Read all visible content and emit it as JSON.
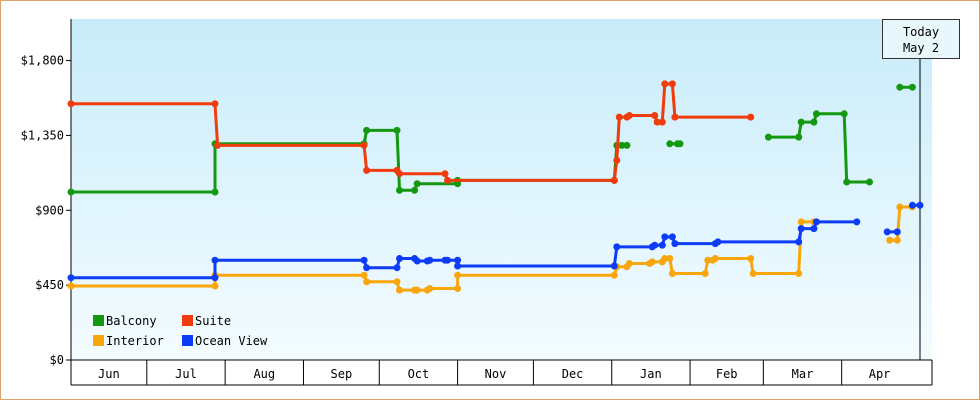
{
  "chart_data": {
    "type": "line",
    "title": "",
    "xlabel": "",
    "ylabel": "",
    "ylim": [
      0,
      2050
    ],
    "y_ticks": [
      0,
      450,
      900,
      1350,
      1800
    ],
    "y_tick_labels": [
      "$0",
      "$450",
      "$900",
      "$1,350",
      "$1,800"
    ],
    "x_range": [
      "2023-06-01",
      "2024-05-02"
    ],
    "months": [
      {
        "label": "Jun",
        "start": "2023-06-01",
        "end": "2023-07-01"
      },
      {
        "label": "Jul",
        "start": "2023-07-01",
        "end": "2023-08-01"
      },
      {
        "label": "Aug",
        "start": "2023-08-01",
        "end": "2023-09-01"
      },
      {
        "label": "Sep",
        "start": "2023-09-01",
        "end": "2023-10-01"
      },
      {
        "label": "Oct",
        "start": "2023-10-01",
        "end": "2023-11-01"
      },
      {
        "label": "Nov",
        "start": "2023-11-01",
        "end": "2023-12-01"
      },
      {
        "label": "Dec",
        "start": "2023-12-01",
        "end": "2024-01-01"
      },
      {
        "label": "Jan",
        "start": "2024-01-01",
        "end": "2024-02-01"
      },
      {
        "label": "Feb",
        "start": "2024-02-01",
        "end": "2024-03-01"
      },
      {
        "label": "Mar",
        "start": "2024-03-01",
        "end": "2024-04-01"
      },
      {
        "label": "Apr",
        "start": "2024-04-01",
        "end": "2024-05-01"
      }
    ],
    "grid": false,
    "legend_position": "bottom-left",
    "today_marker": {
      "date": "2024-05-02",
      "line1": "Today",
      "line2": "May 2"
    },
    "series": [
      {
        "name": "Balcony",
        "color": "#13980f",
        "segments": [
          [
            [
              "2023-06-01",
              1010
            ],
            [
              "2023-07-28",
              1010
            ],
            [
              "2023-07-28",
              1300
            ],
            [
              "2023-09-25",
              1300
            ],
            [
              "2023-09-26",
              1380
            ],
            [
              "2023-10-08",
              1380
            ],
            [
              "2023-10-09",
              1020
            ],
            [
              "2023-10-15",
              1020
            ],
            [
              "2023-10-16",
              1060
            ],
            [
              "2023-11-01",
              1060
            ],
            [
              "2023-11-01",
              1080
            ],
            [
              "2024-01-02",
              1080
            ],
            [
              "2024-01-03",
              1290
            ]
          ],
          [
            [
              "2024-01-05",
              1290
            ],
            [
              "2024-01-07",
              1290
            ]
          ],
          [
            [
              "2024-01-24",
              1300
            ],
            [
              "2024-01-27",
              1300
            ],
            [
              "2024-01-28",
              1300
            ]
          ],
          [
            [
              "2024-03-03",
              1340
            ],
            [
              "2024-03-15",
              1340
            ],
            [
              "2024-03-16",
              1430
            ],
            [
              "2024-03-21",
              1430
            ],
            [
              "2024-03-22",
              1480
            ],
            [
              "2024-04-02",
              1480
            ],
            [
              "2024-04-03",
              1070
            ],
            [
              "2024-04-12",
              1070
            ]
          ],
          [
            [
              "2024-04-24",
              1640
            ],
            [
              "2024-04-29",
              1640
            ]
          ]
        ]
      },
      {
        "name": "Suite",
        "color": "#f03c0c",
        "segments": [
          [
            [
              "2023-06-01",
              1540
            ],
            [
              "2023-07-28",
              1540
            ],
            [
              "2023-07-29",
              1290
            ],
            [
              "2023-09-25",
              1290
            ],
            [
              "2023-09-26",
              1140
            ],
            [
              "2023-10-08",
              1140
            ],
            [
              "2023-10-09",
              1120
            ],
            [
              "2023-10-27",
              1120
            ],
            [
              "2023-10-28",
              1080
            ],
            [
              "2024-01-02",
              1080
            ],
            [
              "2024-01-03",
              1200
            ],
            [
              "2024-01-04",
              1460
            ],
            [
              "2024-01-07",
              1460
            ],
            [
              "2024-01-08",
              1470
            ],
            [
              "2024-01-18",
              1470
            ],
            [
              "2024-01-19",
              1430
            ],
            [
              "2024-01-21",
              1430
            ],
            [
              "2024-01-22",
              1660
            ],
            [
              "2024-01-25",
              1660
            ],
            [
              "2024-01-26",
              1460
            ],
            [
              "2024-02-25",
              1460
            ]
          ]
        ]
      },
      {
        "name": "Interior",
        "color": "#f8a60b",
        "segments": [
          [
            [
              "2023-06-01",
              445
            ],
            [
              "2023-07-28",
              445
            ],
            [
              "2023-07-28",
              510
            ],
            [
              "2023-09-25",
              510
            ],
            [
              "2023-09-26",
              470
            ],
            [
              "2023-10-08",
              470
            ],
            [
              "2023-10-09",
              420
            ],
            [
              "2023-10-15",
              420
            ],
            [
              "2023-10-16",
              420
            ],
            [
              "2023-10-20",
              420
            ],
            [
              "2023-10-21",
              430
            ],
            [
              "2023-11-01",
              430
            ],
            [
              "2023-11-01",
              510
            ],
            [
              "2024-01-02",
              510
            ],
            [
              "2024-01-03",
              560
            ],
            [
              "2024-01-07",
              560
            ],
            [
              "2024-01-08",
              580
            ],
            [
              "2024-01-16",
              580
            ],
            [
              "2024-01-17",
              590
            ],
            [
              "2024-01-21",
              590
            ],
            [
              "2024-01-22",
              610
            ],
            [
              "2024-01-24",
              610
            ],
            [
              "2024-01-25",
              520
            ],
            [
              "2024-02-07",
              520
            ],
            [
              "2024-02-08",
              600
            ],
            [
              "2024-02-10",
              600
            ],
            [
              "2024-02-11",
              610
            ],
            [
              "2024-02-25",
              610
            ],
            [
              "2024-02-26",
              520
            ],
            [
              "2024-03-15",
              520
            ],
            [
              "2024-03-16",
              830
            ],
            [
              "2024-03-21",
              830
            ],
            [
              "2024-03-22",
              830
            ]
          ],
          [
            [
              "2024-04-20",
              720
            ],
            [
              "2024-04-23",
              720
            ],
            [
              "2024-04-24",
              920
            ],
            [
              "2024-04-29",
              920
            ]
          ]
        ]
      },
      {
        "name": "Ocean View",
        "color": "#0d3cf5",
        "segments": [
          [
            [
              "2023-06-01",
              495
            ],
            [
              "2023-07-28",
              495
            ],
            [
              "2023-07-28",
              600
            ],
            [
              "2023-09-25",
              600
            ],
            [
              "2023-09-26",
              555
            ],
            [
              "2023-10-08",
              555
            ],
            [
              "2023-10-09",
              610
            ],
            [
              "2023-10-15",
              610
            ],
            [
              "2023-10-16",
              595
            ],
            [
              "2023-10-20",
              595
            ],
            [
              "2023-10-21",
              600
            ],
            [
              "2023-10-27",
              600
            ],
            [
              "2023-10-28",
              600
            ],
            [
              "2023-11-01",
              600
            ],
            [
              "2023-11-01",
              565
            ],
            [
              "2024-01-02",
              565
            ],
            [
              "2024-01-03",
              680
            ],
            [
              "2024-01-17",
              680
            ],
            [
              "2024-01-18",
              690
            ],
            [
              "2024-01-21",
              690
            ],
            [
              "2024-01-22",
              740
            ],
            [
              "2024-01-25",
              740
            ],
            [
              "2024-01-26",
              700
            ],
            [
              "2024-02-11",
              700
            ],
            [
              "2024-02-12",
              710
            ],
            [
              "2024-03-15",
              710
            ],
            [
              "2024-03-16",
              790
            ],
            [
              "2024-03-21",
              790
            ],
            [
              "2024-03-22",
              830
            ],
            [
              "2024-04-07",
              830
            ]
          ],
          [
            [
              "2024-04-19",
              770
            ],
            [
              "2024-04-23",
              770
            ]
          ],
          [
            [
              "2024-04-29",
              930
            ],
            [
              "2024-05-02",
              930
            ]
          ]
        ]
      }
    ]
  },
  "legend": [
    {
      "name": "Balcony",
      "color": "#13980f"
    },
    {
      "name": "Suite",
      "color": "#f03c0c"
    },
    {
      "name": "Interior",
      "color": "#f8a60b"
    },
    {
      "name": "Ocean View",
      "color": "#0d3cf5"
    }
  ]
}
